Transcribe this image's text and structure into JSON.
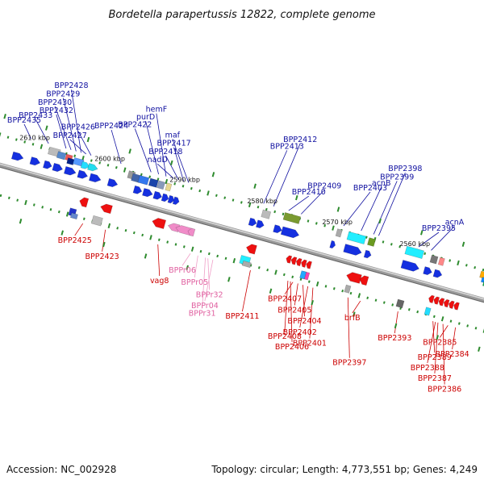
{
  "title": "Bordetella parapertussis 12822, complete genome",
  "footer": {
    "accession": "Accession: NC_002928",
    "stats": "Topology: circular; Length: 4,773,551 bp; Genes: 4,249"
  },
  "colors": {
    "forward_gene": "#1530e0",
    "reverse_gene": "#ee1010",
    "ncrna": "#f08cc8",
    "backbone": "#888888",
    "tick": "#2e8b2e"
  },
  "kbp_ticks": [
    {
      "label": "2610 kbp",
      "t": 0.07
    },
    {
      "label": "2600 kbp",
      "t": 0.22
    },
    {
      "label": "2590 kbp",
      "t": 0.37
    },
    {
      "label": "2580 kbp",
      "t": 0.525
    },
    {
      "label": "2570 kbp",
      "t": 0.675
    },
    {
      "label": "2560 kbp",
      "t": 0.83
    }
  ],
  "forward_labels": [
    {
      "text": "BPP2435",
      "t": 0.06
    },
    {
      "text": "BPP2433",
      "t": 0.095
    },
    {
      "text": "BPP2432",
      "t": 0.13
    },
    {
      "text": "BPP2430",
      "t": 0.14
    },
    {
      "text": "BPP2429",
      "t": 0.15
    },
    {
      "text": "BPP2428",
      "t": 0.16
    },
    {
      "text": "BPP2427",
      "t": 0.17
    },
    {
      "text": "BPP2426",
      "t": 0.18
    },
    {
      "text": "BPP2424",
      "t": 0.24
    },
    {
      "text": "BPP2422",
      "t": 0.3
    },
    {
      "text": "purD",
      "t": 0.315
    },
    {
      "text": "hemF",
      "t": 0.33
    },
    {
      "text": "nadD",
      "t": 0.345
    },
    {
      "text": "BPP2418",
      "t": 0.355
    },
    {
      "text": "BPP2417",
      "t": 0.365
    },
    {
      "text": "maf",
      "t": 0.375
    },
    {
      "text": "BPP2413",
      "t": 0.525
    },
    {
      "text": "BPP2412",
      "t": 0.545
    },
    {
      "text": "BPP2410",
      "t": 0.575
    },
    {
      "text": "BPP2409",
      "t": 0.6
    },
    {
      "text": "BPP2403",
      "t": 0.685
    },
    {
      "text": "acnB",
      "t": 0.72
    },
    {
      "text": "BPP2399",
      "t": 0.745
    },
    {
      "text": "BPP2398",
      "t": 0.755
    },
    {
      "text": "BPP2395",
      "t": 0.835
    },
    {
      "text": "acnA",
      "t": 0.86
    }
  ],
  "reverse_labels": [
    {
      "text": "BPP2425",
      "t": 0.2
    },
    {
      "text": "BPP2423",
      "t": 0.245
    },
    {
      "text": "vag8",
      "t": 0.35
    },
    {
      "text": "BPP2411",
      "t": 0.535
    },
    {
      "text": "BPP2408",
      "t": 0.61
    },
    {
      "text": "BPP2406",
      "t": 0.615
    },
    {
      "text": "BPP2407",
      "t": 0.62
    },
    {
      "text": "BPP2405",
      "t": 0.63
    },
    {
      "text": "BPP2404",
      "t": 0.64
    },
    {
      "text": "BPP2402",
      "t": 0.65
    },
    {
      "text": "BPP2401",
      "t": 0.66
    },
    {
      "text": "BPP2397",
      "t": 0.73
    },
    {
      "text": "brfB",
      "t": 0.755
    },
    {
      "text": "BPP2393",
      "t": 0.83
    },
    {
      "text": "BPP2389",
      "t": 0.9
    },
    {
      "text": "BPP2388",
      "t": 0.905
    },
    {
      "text": "BPP2387",
      "t": 0.91
    },
    {
      "text": "BPP2386",
      "t": 0.92
    },
    {
      "text": "BPP2385",
      "t": 0.93
    },
    {
      "text": "BPP2384",
      "t": 0.945
    }
  ],
  "ncrna_labels": [
    {
      "text": "BPPr06",
      "t": 0.415
    },
    {
      "text": "BPPr05",
      "t": 0.43
    },
    {
      "text": "BPPr32",
      "t": 0.45
    },
    {
      "text": "BPPr04",
      "t": 0.46
    },
    {
      "text": "BPPr31",
      "t": 0.445
    }
  ]
}
